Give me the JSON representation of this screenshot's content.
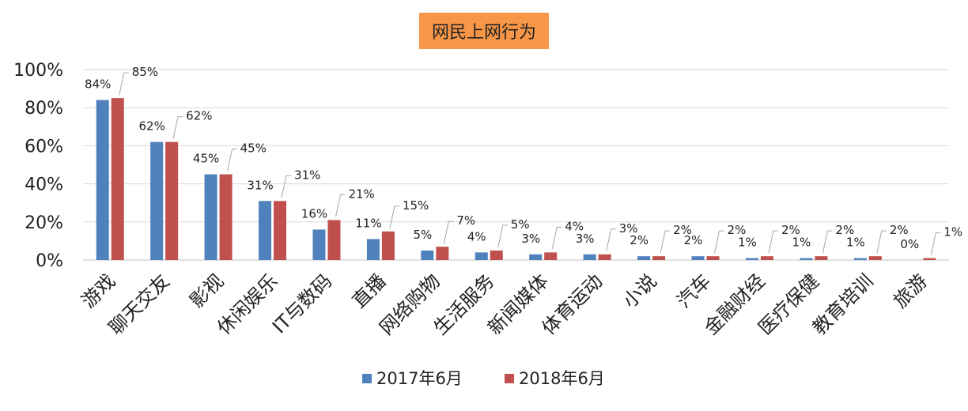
{
  "chart_data": {
    "type": "bar",
    "title": "网民上网行为",
    "categories": [
      "游戏",
      "聊天交友",
      "影视",
      "休闲娱乐",
      "IT与数码",
      "直播",
      "网络购物",
      "生活服务",
      "新闻媒体",
      "体育运动",
      "小说",
      "汽车",
      "金融财经",
      "医疗保健",
      "教育培训",
      "旅游"
    ],
    "series": [
      {
        "name": "2017年6月",
        "color": "#4F81BD",
        "values": [
          84,
          62,
          45,
          31,
          16,
          11,
          5,
          4,
          3,
          3,
          2,
          2,
          1,
          1,
          1,
          0
        ],
        "labels": [
          "84%",
          "62%",
          "45%",
          "31%",
          "16%",
          "11%",
          "5%",
          "4%",
          "3%",
          "3%",
          "2%",
          "2%",
          "1%",
          "1%",
          "1%",
          "0%"
        ]
      },
      {
        "name": "2018年6月",
        "color": "#C0504D",
        "values": [
          85,
          62,
          45,
          31,
          21,
          15,
          7,
          5,
          4,
          3,
          2,
          2,
          2,
          2,
          2,
          1
        ],
        "labels": [
          "85%",
          "62%",
          "45%",
          "31%",
          "21%",
          "15%",
          "7%",
          "5%",
          "4%",
          "3%",
          "2%",
          "2%",
          "2%",
          "2%",
          "2%",
          "1%"
        ]
      }
    ],
    "ylim": [
      0,
      100
    ],
    "yticks": [
      "0%",
      "20%",
      "40%",
      "60%",
      "80%",
      "100%"
    ],
    "grid": true,
    "legend_position": "bottom"
  }
}
